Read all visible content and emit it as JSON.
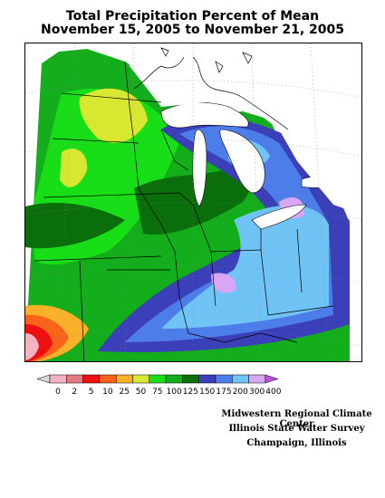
{
  "title": {
    "line1": "Total Precipitation Percent of Mean",
    "line2": "November 15, 2005 to November 21, 2005"
  },
  "legend": {
    "classes": [
      {
        "label": "0",
        "color": "#d8d8d8"
      },
      {
        "label": "2",
        "color": "#f5b3c0"
      },
      {
        "label": "5",
        "color": "#e27a84"
      },
      {
        "label": "10",
        "color": "#ee1010"
      },
      {
        "label": "25",
        "color": "#fa6418"
      },
      {
        "label": "50",
        "color": "#f9b12a"
      },
      {
        "label": "75",
        "color": "#d8e830"
      },
      {
        "label": "100",
        "color": "#18de18"
      },
      {
        "label": "125",
        "color": "#14ad1c"
      },
      {
        "label": "150",
        "color": "#0a6e0a"
      },
      {
        "label": "175",
        "color": "#3b3fb8"
      },
      {
        "label": "200",
        "color": "#4d7de8"
      },
      {
        "label": "300",
        "color": "#6fc3f5"
      },
      {
        "label": "400",
        "color": "#d8a6f5"
      },
      {
        "label": "",
        "color": "#c04ee0"
      }
    ]
  },
  "credits": {
    "line1": "Midwestern Regional Climate Center",
    "line2": "Illinois State Water Survey",
    "line3": "Champaign, Illinois"
  }
}
